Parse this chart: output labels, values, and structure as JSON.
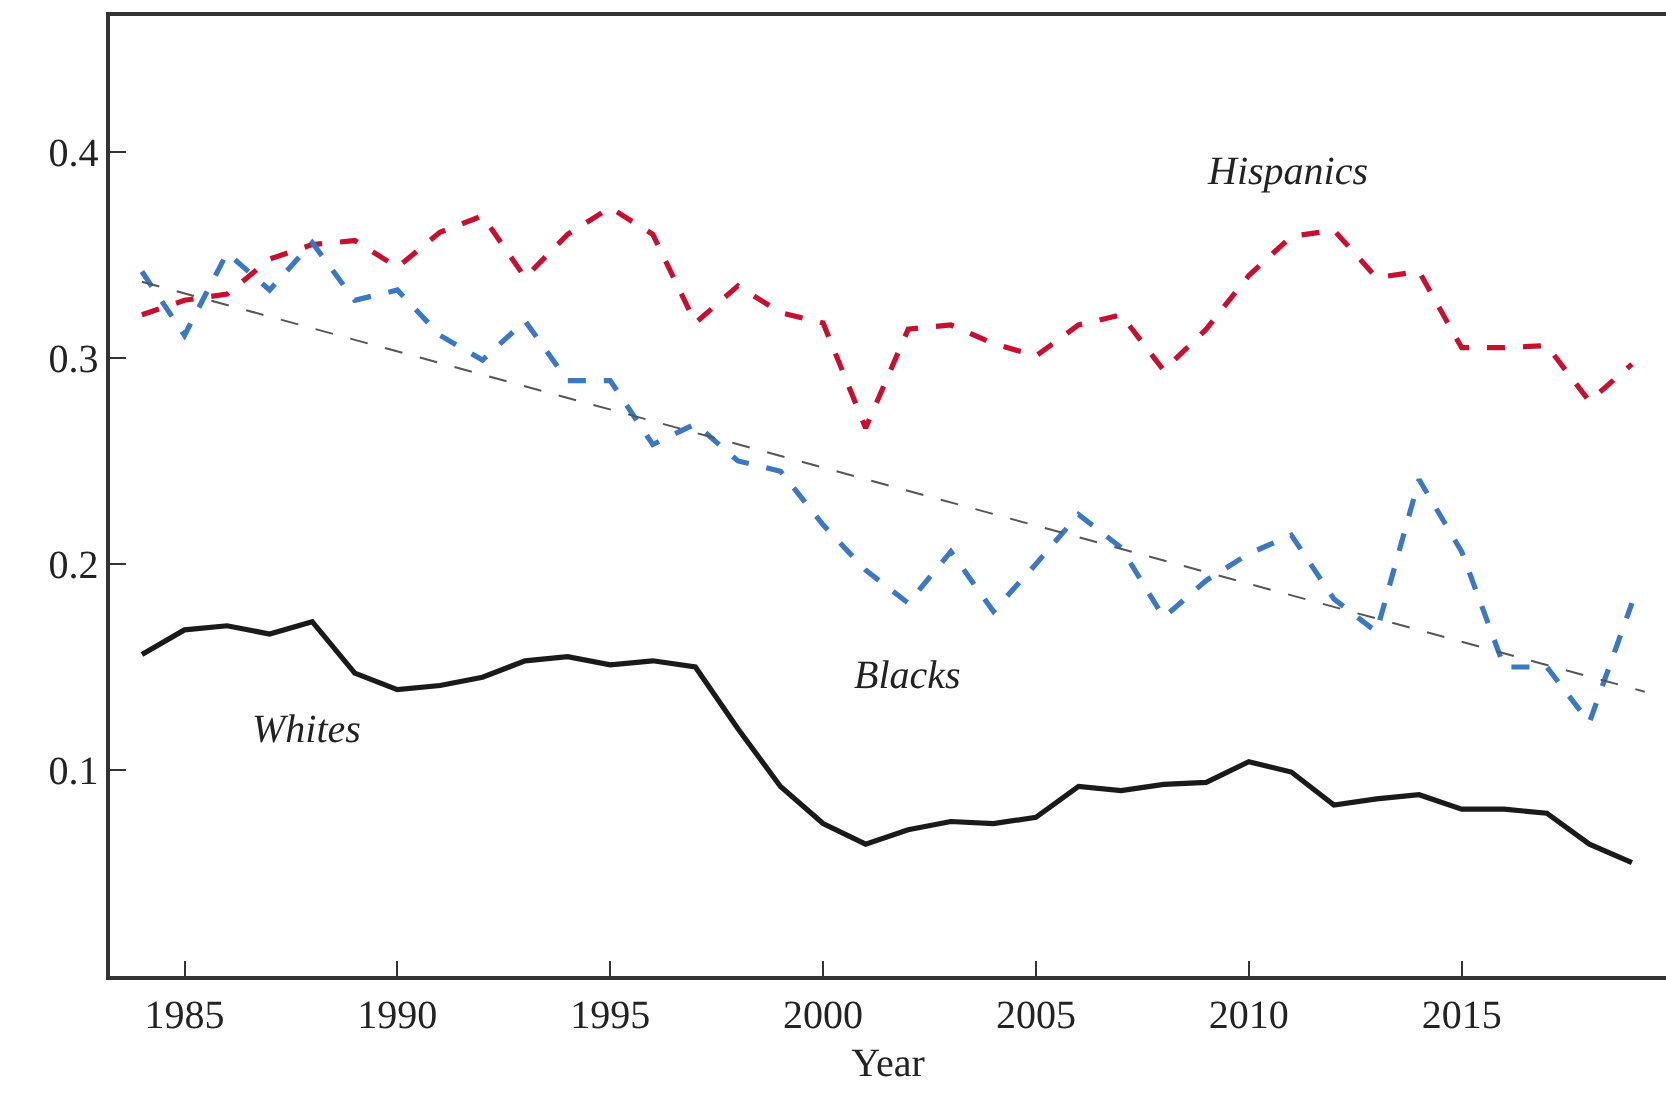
{
  "chart_data": {
    "type": "line",
    "xlabel": "Year",
    "xlim": [
      1983.25,
      2019.8
    ],
    "ylim": [
      0,
      0.466
    ],
    "xticks": [
      1985,
      1990,
      1995,
      2000,
      2005,
      2010,
      2015
    ],
    "yticks": [
      0.1,
      0.2,
      0.3,
      0.4
    ],
    "grid": false,
    "legend": false,
    "marker": "none",
    "x": [
      1984,
      1985,
      1986,
      1987,
      1988,
      1989,
      1990,
      1991,
      1992,
      1993,
      1994,
      1995,
      1996,
      1997,
      1998,
      1999,
      2000,
      2001,
      2002,
      2003,
      2004,
      2005,
      2006,
      2007,
      2008,
      2009,
      2010,
      2011,
      2012,
      2013,
      2014,
      2015,
      2016,
      2017,
      2018,
      2019
    ],
    "series": [
      {
        "name": "Hispanics",
        "color": "#c8102e",
        "line_style": "dashed",
        "values": [
          0.321,
          0.328,
          0.331,
          0.348,
          0.355,
          0.357,
          0.344,
          0.361,
          0.369,
          0.339,
          0.36,
          0.373,
          0.36,
          0.317,
          0.335,
          0.322,
          0.317,
          0.266,
          0.314,
          0.316,
          0.307,
          0.301,
          0.316,
          0.321,
          0.294,
          0.314,
          0.34,
          0.359,
          0.362,
          0.339,
          0.342,
          0.305,
          0.305,
          0.306,
          0.279,
          0.297
        ]
      },
      {
        "name": "Blacks",
        "color": "#3a78c4",
        "line_style": "dashed",
        "values": [
          0.342,
          0.311,
          0.351,
          0.333,
          0.356,
          0.328,
          0.333,
          0.311,
          0.299,
          0.318,
          0.289,
          0.289,
          0.258,
          0.268,
          0.25,
          0.245,
          0.219,
          0.197,
          0.181,
          0.206,
          0.177,
          0.2,
          0.224,
          0.208,
          0.174,
          0.192,
          0.205,
          0.214,
          0.183,
          0.167,
          0.241,
          0.206,
          0.15,
          0.15,
          0.123,
          0.181
        ]
      },
      {
        "name": "Whites",
        "color": "#1a1a1a",
        "line_style": "solid",
        "values": [
          0.156,
          0.168,
          0.17,
          0.166,
          0.172,
          0.147,
          0.139,
          0.141,
          0.145,
          0.153,
          0.155,
          0.151,
          0.153,
          0.15,
          0.12,
          0.092,
          0.074,
          0.064,
          0.071,
          0.075,
          0.074,
          0.077,
          0.092,
          0.09,
          0.093,
          0.094,
          0.104,
          0.099,
          0.083,
          0.086,
          0.088,
          0.081,
          0.081,
          0.079,
          0.064,
          0.055
        ]
      },
      {
        "type": "line",
        "color": "#555555",
        "line_style": "dashed",
        "x": [
          1984,
          2019.3
        ],
        "values": [
          0.337,
          0.138
        ]
      }
    ]
  }
}
